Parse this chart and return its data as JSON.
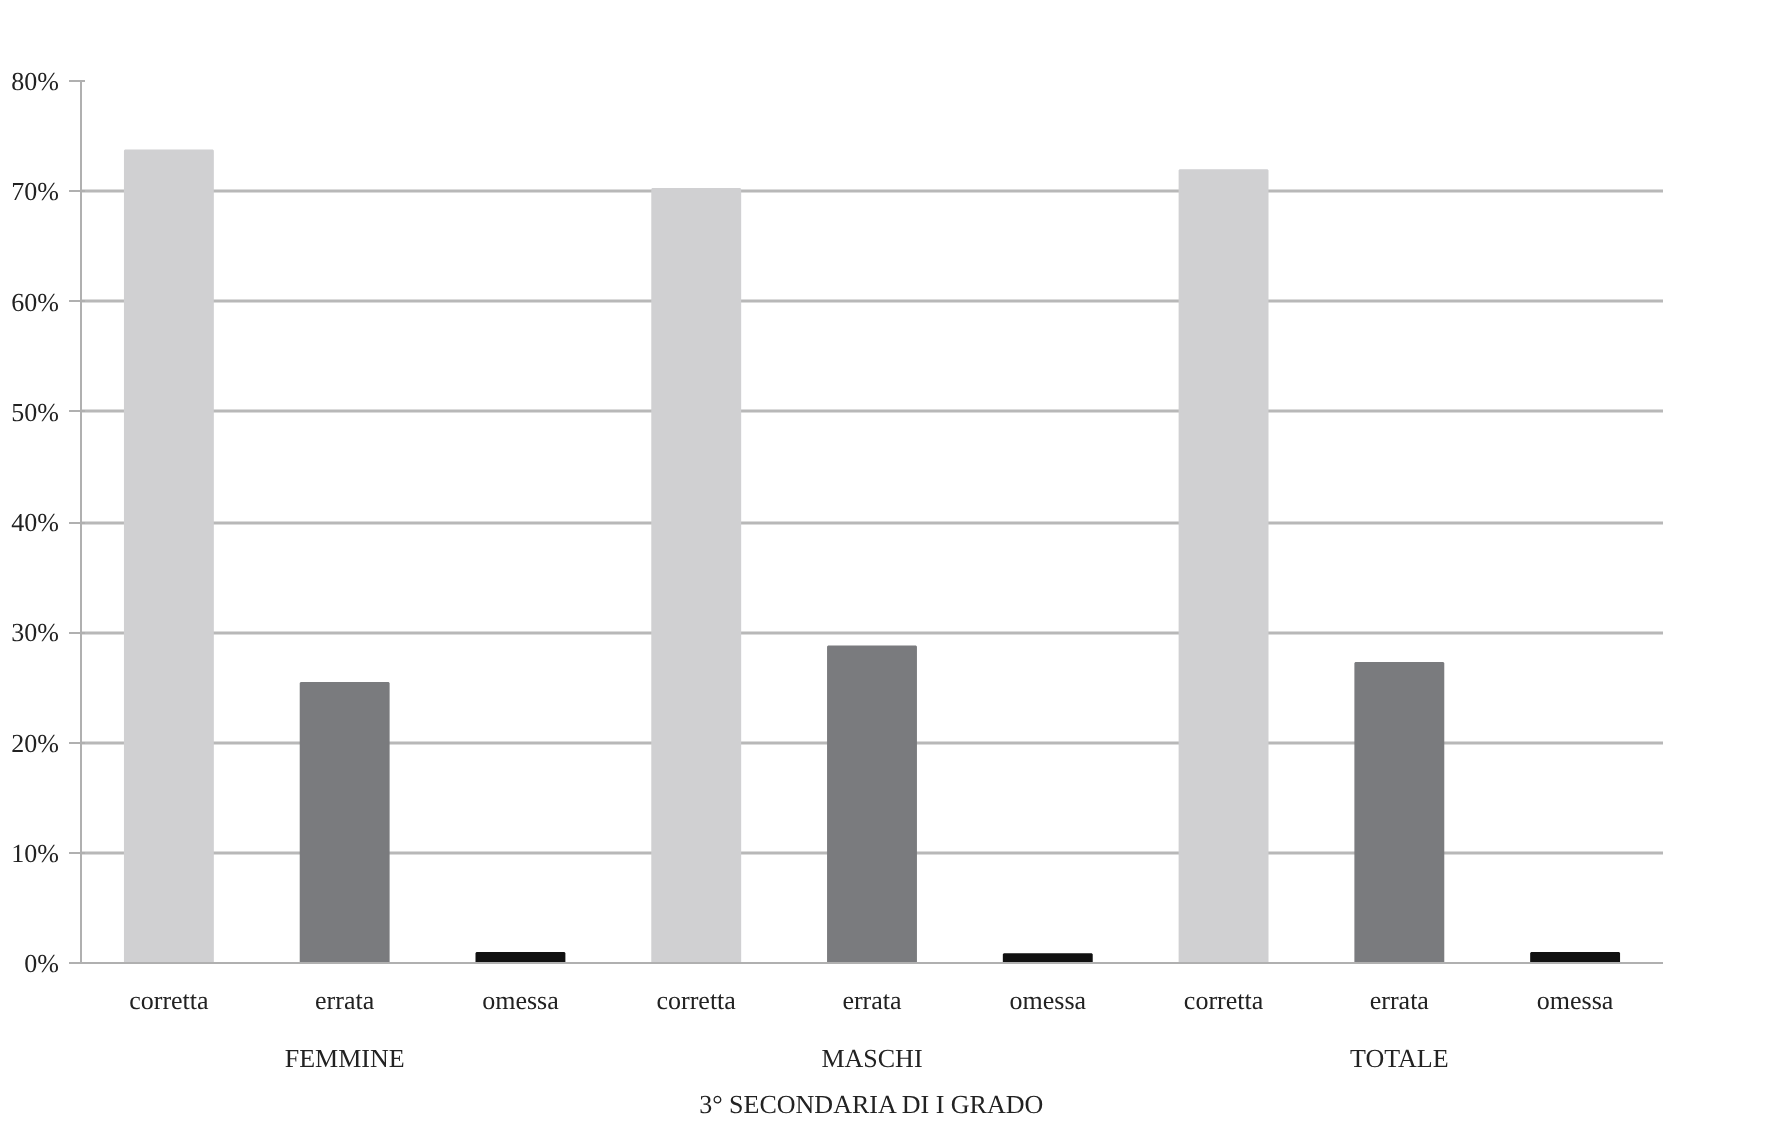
{
  "chart_data": {
    "type": "bar",
    "categories": [
      "corretta",
      "errata",
      "omessa",
      "corretta",
      "errata",
      "omessa",
      "corretta",
      "errata",
      "omessa"
    ],
    "values": [
      73.7,
      25.4,
      0.9,
      70.2,
      28.7,
      0.8,
      71.9,
      27.2,
      0.9
    ],
    "colors": [
      "#d0d0d2",
      "#7a7b7e",
      "#111111",
      "#d0d0d2",
      "#7a7b7e",
      "#111111",
      "#d0d0d2",
      "#7a7b7e",
      "#111111"
    ],
    "annotations": [
      "FEMMINE",
      "MASCHI",
      "TOTALE"
    ],
    "xlabel": "3° SECONDARIA DI I GRADO",
    "ylim": [
      0,
      80
    ],
    "yticks": [
      {
        "value": 0,
        "label": "0%"
      },
      {
        "value": 10,
        "label": "10%"
      },
      {
        "value": 20,
        "label": "20%"
      },
      {
        "value": 30,
        "label": "30%"
      },
      {
        "value": 40,
        "label": "40%"
      },
      {
        "value": 50,
        "label": "50%"
      },
      {
        "value": 60,
        "label": "60%"
      },
      {
        "value": 70,
        "label": "70%"
      },
      {
        "value": 80,
        "label": "80%"
      }
    ],
    "grid": "y"
  }
}
